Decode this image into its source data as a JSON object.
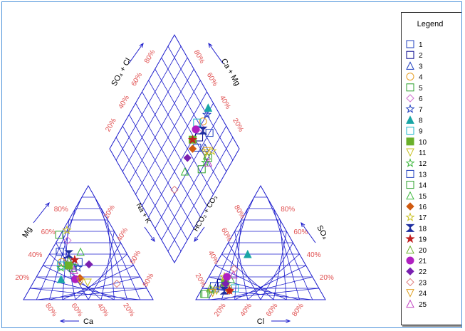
{
  "chart_data": {
    "type": "scatter",
    "subtype": "piper-diagram",
    "axes": {
      "cation_bottom": "Ca",
      "cation_left": "Mg",
      "anion_bottom": "Cl",
      "anion_right": "SO₄",
      "diamond_upper_left": "SO₄ + Cl",
      "diamond_upper_right": "Ca + Mg",
      "diamond_lower_left": "Na + K",
      "diamond_lower_right": "HCO₃ + CO₃"
    },
    "tick_labels": [
      "20%",
      "40%",
      "60%",
      "80%"
    ],
    "grid": true,
    "legend": {
      "title": "Legend",
      "position": "right",
      "entries": [
        {
          "name": "1",
          "marker": "square",
          "color": "#1f3fbf",
          "filled": false
        },
        {
          "name": "2",
          "marker": "square",
          "color": "#00008b",
          "filled": false
        },
        {
          "name": "3",
          "marker": "triangle",
          "color": "#1f3fbf",
          "filled": false
        },
        {
          "name": "4",
          "marker": "circle",
          "color": "#e69a1a",
          "filled": false
        },
        {
          "name": "5",
          "marker": "square",
          "color": "#2ca02c",
          "filled": false
        },
        {
          "name": "6",
          "marker": "diamond",
          "color": "#d070d0",
          "filled": false
        },
        {
          "name": "7",
          "marker": "star",
          "color": "#1f3fbf",
          "filled": false
        },
        {
          "name": "8",
          "marker": "triangle",
          "color": "#1aa6a6",
          "filled": true
        },
        {
          "name": "9",
          "marker": "square",
          "color": "#18b4c8",
          "filled": false
        },
        {
          "name": "10",
          "marker": "square",
          "color": "#6ab02a",
          "filled": true
        },
        {
          "name": "11",
          "marker": "triangle-down",
          "color": "#c8c020",
          "filled": false
        },
        {
          "name": "12",
          "marker": "star",
          "color": "#3cb83c",
          "filled": false
        },
        {
          "name": "13",
          "marker": "square",
          "color": "#1f3fbf",
          "filled": false
        },
        {
          "name": "14",
          "marker": "square",
          "color": "#2ca02c",
          "filled": false
        },
        {
          "name": "15",
          "marker": "triangle",
          "color": "#3cb83c",
          "filled": false
        },
        {
          "name": "16",
          "marker": "diamond",
          "color": "#d05a10",
          "filled": true
        },
        {
          "name": "17",
          "marker": "star",
          "color": "#c8c020",
          "filled": false
        },
        {
          "name": "18",
          "marker": "hourglass",
          "color": "#1f2fa0",
          "filled": true
        },
        {
          "name": "19",
          "marker": "star",
          "color": "#c02020",
          "filled": true
        },
        {
          "name": "20",
          "marker": "triangle",
          "color": "#6ab02a",
          "filled": false
        },
        {
          "name": "21",
          "marker": "circle",
          "color": "#b020c0",
          "filled": true
        },
        {
          "name": "22",
          "marker": "diamond",
          "color": "#7a20b0",
          "filled": true
        },
        {
          "name": "23",
          "marker": "diamond",
          "color": "#e08080",
          "filled": false
        },
        {
          "name": "24",
          "marker": "triangle-down",
          "color": "#e0a020",
          "filled": false
        },
        {
          "name": "25",
          "marker": "triangle",
          "color": "#c040c0",
          "filled": false
        }
      ]
    },
    "cation_points": [
      {
        "series": "1",
        "Ca": 41,
        "Mg": 33
      },
      {
        "series": "2",
        "Ca": 49,
        "Mg": 34
      },
      {
        "series": "3",
        "Ca": 47,
        "Mg": 30
      },
      {
        "series": "4",
        "Ca": 54,
        "Mg": 33
      },
      {
        "series": "5",
        "Ca": 48,
        "Mg": 28
      },
      {
        "series": "6",
        "Ca": 40,
        "Mg": 52
      },
      {
        "series": "7",
        "Ca": 44,
        "Mg": 28
      },
      {
        "series": "8",
        "Ca": 62,
        "Mg": 18
      },
      {
        "series": "9",
        "Ca": 56,
        "Mg": 30
      },
      {
        "series": "10",
        "Ca": 50,
        "Mg": 30
      },
      {
        "series": "11",
        "Ca": 43,
        "Mg": 15
      },
      {
        "series": "12",
        "Ca": 57,
        "Mg": 28
      },
      {
        "series": "13",
        "Ca": 51,
        "Mg": 42
      },
      {
        "series": "14",
        "Ca": 44,
        "Mg": 57
      },
      {
        "series": "15",
        "Ca": 35,
        "Mg": 42
      },
      {
        "series": "16",
        "Ca": 47,
        "Mg": 19
      },
      {
        "series": "17",
        "Ca": 36,
        "Mg": 61
      },
      {
        "series": "18",
        "Ca": 45,
        "Mg": 40
      },
      {
        "series": "19",
        "Ca": 43,
        "Mg": 35
      },
      {
        "series": "20",
        "Ca": 48,
        "Mg": 34
      },
      {
        "series": "21",
        "Ca": 51,
        "Mg": 18
      },
      {
        "series": "22",
        "Ca": 34,
        "Mg": 31
      },
      {
        "series": "23",
        "Ca": 21,
        "Mg": 14
      },
      {
        "series": "24",
        "Ca": 48,
        "Mg": 16
      },
      {
        "series": "25",
        "Ca": 48,
        "Mg": 26
      }
    ],
    "anion_points": [
      {
        "series": "1",
        "Cl": 8,
        "SO4": 12
      },
      {
        "series": "2",
        "Cl": 12,
        "SO4": 15
      },
      {
        "series": "3",
        "Cl": 10,
        "SO4": 10
      },
      {
        "series": "4",
        "Cl": 20,
        "SO4": 10
      },
      {
        "series": "5",
        "Cl": 5,
        "SO4": 5
      },
      {
        "series": "6",
        "Cl": 15,
        "SO4": 12
      },
      {
        "series": "7",
        "Cl": 16,
        "SO4": 12
      },
      {
        "series": "8",
        "Cl": 20,
        "SO4": 40
      },
      {
        "series": "9",
        "Cl": 25,
        "SO4": 10
      },
      {
        "series": "10",
        "Cl": 15,
        "SO4": 15
      },
      {
        "series": "11",
        "Cl": 12,
        "SO4": 8
      },
      {
        "series": "12",
        "Cl": 8,
        "SO4": 8
      },
      {
        "series": "13",
        "Cl": 14,
        "SO4": 12
      },
      {
        "series": "14",
        "Cl": 4,
        "SO4": 5
      },
      {
        "series": "15",
        "Cl": 18,
        "SO4": 18
      },
      {
        "series": "16",
        "Cl": 22,
        "SO4": 8
      },
      {
        "series": "17",
        "Cl": 12,
        "SO4": 20
      },
      {
        "series": "18",
        "Cl": 18,
        "SO4": 8
      },
      {
        "series": "19",
        "Cl": 22,
        "SO4": 8
      },
      {
        "series": "20",
        "Cl": 6,
        "SO4": 10
      },
      {
        "series": "21",
        "Cl": 14,
        "SO4": 20
      },
      {
        "series": "22",
        "Cl": 16,
        "SO4": 14
      },
      {
        "series": "23",
        "Cl": 16,
        "SO4": 27
      },
      {
        "series": "24",
        "Cl": 10,
        "SO4": 6
      },
      {
        "series": "25",
        "Cl": 18,
        "SO4": 22
      }
    ],
    "diamond_points": [
      {
        "series": "1",
        "SO4_Cl": 30,
        "Ca_Mg": 84
      },
      {
        "series": "2",
        "SO4_Cl": 36,
        "Ca_Mg": 74
      },
      {
        "series": "3",
        "SO4_Cl": 27,
        "Ca_Mg": 74
      },
      {
        "series": "4",
        "SO4_Cl": 40,
        "Ca_Mg": 84
      },
      {
        "series": "5",
        "SO4_Cl": 20,
        "Ca_Mg": 72
      },
      {
        "series": "6",
        "SO4_Cl": 38,
        "Ca_Mg": 80
      },
      {
        "series": "7",
        "SO4_Cl": 40,
        "Ca_Mg": 90
      },
      {
        "series": "8",
        "SO4_Cl": 42,
        "Ca_Mg": 94
      },
      {
        "series": "9",
        "SO4_Cl": 44,
        "Ca_Mg": 79
      },
      {
        "series": "10",
        "SO4_Cl": 40,
        "Ca_Mg": 68
      },
      {
        "series": "11",
        "SO4_Cl": 24,
        "Ca_Mg": 72
      },
      {
        "series": "12",
        "SO4_Cl": 20,
        "Ca_Mg": 68
      },
      {
        "series": "13",
        "SO4_Cl": 33,
        "Ca_Mg": 68
      },
      {
        "series": "14",
        "SO4_Cl": 20,
        "Ca_Mg": 62
      },
      {
        "series": "15",
        "SO4_Cl": 32,
        "Ca_Mg": 48
      },
      {
        "series": "16",
        "SO4_Cl": 36,
        "Ca_Mg": 64
      },
      {
        "series": "17",
        "SO4_Cl": 20,
        "Ca_Mg": 78
      },
      {
        "series": "18",
        "SO4_Cl": 36,
        "Ca_Mg": 80
      },
      {
        "series": "19",
        "SO4_Cl": 40,
        "Ca_Mg": 68
      },
      {
        "series": "20",
        "SO4_Cl": 22,
        "Ca_Mg": 72
      },
      {
        "series": "21",
        "SO4_Cl": 42,
        "Ca_Mg": 75
      },
      {
        "series": "22",
        "SO4_Cl": 36,
        "Ca_Mg": 56
      },
      {
        "series": "23",
        "SO4_Cl": 32,
        "Ca_Mg": 32
      },
      {
        "series": "24",
        "SO4_Cl": 24,
        "Ca_Mg": 74
      },
      {
        "series": "25",
        "SO4_Cl": 18,
        "Ca_Mg": 70
      }
    ]
  }
}
